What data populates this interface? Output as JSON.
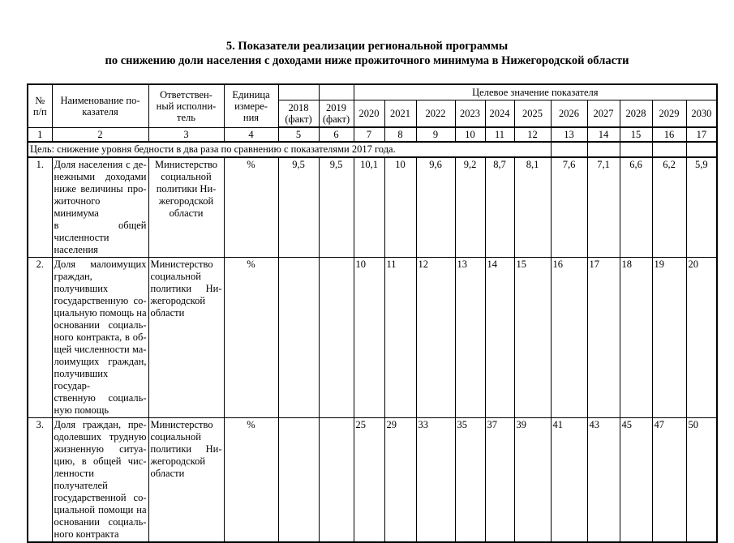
{
  "title": {
    "line1": "5. Показатели реализации региональной программы",
    "line2": "по снижению доли населения с доходами ниже прожиточного минимума в Нижегородской области"
  },
  "table": {
    "header": {
      "num_lines": [
        "№",
        "п/п"
      ],
      "indicator_lines": [
        "Наименование по-",
        "казателя"
      ],
      "executor_lines": [
        "Ответствен-",
        "ный исполни-",
        "тель"
      ],
      "unit_lines": [
        "Единица",
        "измере-",
        "ния"
      ],
      "target_title": "Целевое значение показателя",
      "years": [
        [
          "2018",
          "(факт)"
        ],
        [
          "2019",
          "(факт)"
        ],
        [
          "2020"
        ],
        [
          "2021"
        ],
        [
          "2022"
        ],
        [
          "2023"
        ],
        [
          "2024"
        ],
        [
          "2025"
        ],
        [
          "2026"
        ],
        [
          "2027"
        ],
        [
          "2028"
        ],
        [
          "2029"
        ],
        [
          "2030"
        ]
      ],
      "col_numbers": [
        "1",
        "2",
        "3",
        "4",
        "5",
        "6",
        "7",
        "8",
        "9",
        "10",
        "11",
        "12",
        "13",
        "14",
        "15",
        "16",
        "17"
      ]
    },
    "goal": {
      "text": "Цель: снижение уровня бедности в два раза по сравнению с показателями 2017 года."
    },
    "rows": [
      {
        "num": "1.",
        "indicator_lines": [
          "Доля населения с де-",
          "нежными доходами",
          "ниже величины про-",
          "житочного минимума",
          "в общей численности",
          "населения"
        ],
        "executor_lines": [
          "Министерство",
          "социальной",
          "политики Ни-",
          "жегородской",
          "области"
        ],
        "executor_align": "center",
        "unit": "%",
        "values": [
          "9,5",
          "9,5",
          "10,1",
          "10",
          "9,6",
          "9,2",
          "8,7",
          "8,1",
          "7,6",
          "7,1",
          "6,6",
          "6,2",
          "5,9"
        ],
        "values_align": "center"
      },
      {
        "num": "2.",
        "indicator_lines": [
          "Доля малоимущих",
          "граждан, получивших",
          "государственную со-",
          "циальную помощь на",
          "основании социаль-",
          "ного контракта, в об-",
          "щей численности ма-",
          "лоимущих граждан,",
          "получивших государ-",
          "ственную социаль-",
          "ную помощь"
        ],
        "executor_lines": [
          "Министерство",
          "социальной",
          "политики Ни-",
          "жегородской",
          "области"
        ],
        "executor_align": "justify",
        "unit": "%",
        "values": [
          "",
          "",
          "10",
          "11",
          "12",
          "13",
          "14",
          "15",
          "16",
          "17",
          "18",
          "19",
          "20"
        ],
        "values_align": "left"
      },
      {
        "num": "3.",
        "indicator_lines": [
          "Доля граждан, пре-",
          "одолевших трудную",
          "жизненную ситуа-",
          "цию, в общей чис-",
          "ленности получателей",
          "государственной со-",
          "циальной помощи на",
          "основании социаль-",
          "ного контракта"
        ],
        "executor_lines": [
          "Министерство",
          "социальной",
          "политики Ни-",
          "жегородской",
          "области"
        ],
        "executor_align": "justify",
        "unit": "%",
        "values": [
          "",
          "",
          "25",
          "29",
          "33",
          "35",
          "37",
          "39",
          "41",
          "43",
          "45",
          "47",
          "50"
        ],
        "values_align": "left"
      }
    ]
  }
}
